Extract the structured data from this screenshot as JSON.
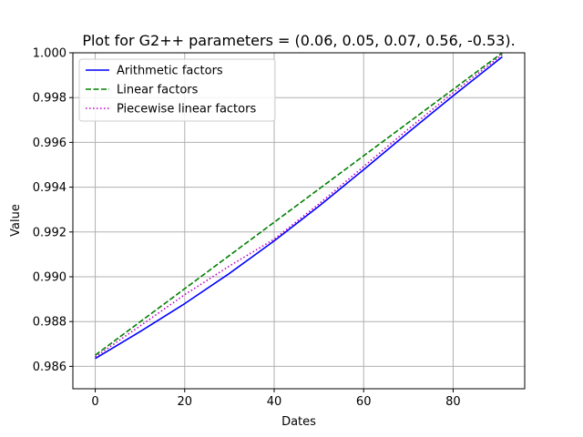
{
  "chart_data": {
    "type": "line",
    "title": "Plot for G2++ parameters = (0.06, 0.05, 0.07, 0.56, -0.53).",
    "xlabel": "Dates",
    "ylabel": "Value",
    "xlim": [
      -5,
      96
    ],
    "ylim": [
      0.985,
      1.0
    ],
    "xticks": [
      0,
      20,
      40,
      60,
      80
    ],
    "yticks": [
      0.986,
      0.988,
      0.99,
      0.992,
      0.994,
      0.996,
      0.998,
      1.0
    ],
    "xtick_labels": [
      "0",
      "20",
      "40",
      "60",
      "80"
    ],
    "ytick_labels": [
      "0.986",
      "0.988",
      "0.990",
      "0.992",
      "0.994",
      "0.996",
      "0.998",
      "1.000"
    ],
    "grid": true,
    "legend_position": "top-left",
    "series": [
      {
        "name": "Arithmetic factors",
        "color": "#0000ff",
        "style": "solid",
        "x": [
          0,
          10,
          20,
          30,
          40,
          50,
          60,
          70,
          80,
          91
        ],
        "y": [
          0.98635,
          0.98755,
          0.9888,
          0.99015,
          0.9916,
          0.99315,
          0.99478,
          0.99645,
          0.99808,
          0.99982
        ]
      },
      {
        "name": "Linear factors",
        "color": "#008000",
        "style": "dashed",
        "x": [
          0,
          91
        ],
        "y": [
          0.9865,
          1.0
        ]
      },
      {
        "name": "Piecewise linear factors",
        "color": "#bf00bf",
        "style": "dotted",
        "x": [
          0,
          10,
          20,
          30,
          40,
          50,
          60,
          70,
          80,
          91
        ],
        "y": [
          0.98642,
          0.9878,
          0.9892,
          0.99048,
          0.99168,
          0.99325,
          0.99492,
          0.9966,
          0.99822,
          0.99992
        ]
      }
    ]
  }
}
